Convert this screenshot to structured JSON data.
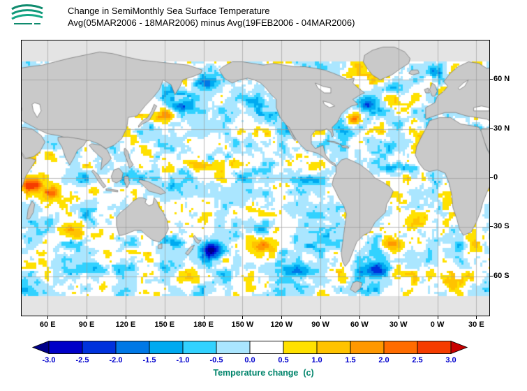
{
  "header": {
    "title_line1": "Change in SemiMonthly Sea Surface Temperature",
    "title_line2": "Avg(05MAR2006 - 18MAR2006) minus Avg(19FEB2006 - 04MAR2006)",
    "logo": "ocean-waves-logo"
  },
  "map": {
    "lat_labels": [
      "60 N",
      "30 N",
      "0",
      "30 S",
      "60 S"
    ],
    "lon_labels": [
      "60 E",
      "90 E",
      "120 E",
      "150 E",
      "180 E",
      "150 W",
      "120 W",
      "90 W",
      "60 W",
      "30 W",
      "0 W",
      "30 E"
    ],
    "land_color": "#c9c9c9",
    "coast_color": "#6f6f6f",
    "ocean_color": "#ffffff",
    "nodata_color": "#e4e4e4",
    "grid_color": "#999999"
  },
  "colorbar": {
    "ticks": [
      "-3.0",
      "-2.5",
      "-2.0",
      "-1.5",
      "-1.0",
      "-0.5",
      "0.0",
      "0.5",
      "1.0",
      "1.5",
      "2.0",
      "2.5",
      "3.0"
    ],
    "caption": "Temperature change  (c)",
    "tick_color": "#0000cd",
    "caption_color": "#00846b",
    "below_color": "#000089",
    "above_color": "#c80000",
    "segment_colors": [
      "#0000c8",
      "#0032dc",
      "#0078e6",
      "#00aaf0",
      "#32d2ff",
      "#aae6ff",
      "#ffffff",
      "#ffe100",
      "#ffc300",
      "#ff9800",
      "#ff6c00",
      "#f53c00"
    ]
  },
  "chart_data": {
    "type": "heatmap",
    "title": "Change in SemiMonthly Sea Surface Temperature",
    "subtitle": "Avg(05MAR2006 - 18MAR2006) minus Avg(19FEB2006 - 04MAR2006)",
    "units": "c",
    "legend_label": "Temperature change  (c)",
    "x_ticks": [
      "60 E",
      "90 E",
      "120 E",
      "150 E",
      "180 E",
      "150 W",
      "120 W",
      "90 W",
      "60 W",
      "30 W",
      "0 W",
      "30 E"
    ],
    "y_ticks": [
      "60 N",
      "30 N",
      "0",
      "30 S",
      "60 S"
    ],
    "lon_range_deg_east": [
      40,
      400
    ],
    "lat_range": [
      -84,
      84
    ],
    "grid_spacing_deg": 30,
    "levels": [
      -3,
      -2.5,
      -2,
      -1.5,
      -1,
      -0.5,
      0,
      0.5,
      1,
      1.5,
      2,
      2.5,
      3
    ],
    "anomaly_regions": [
      {
        "name": "NW Indian Ocean near Somali coast",
        "lon": 47,
        "lat": -4,
        "dlon": 6,
        "dlat": 4,
        "value": 2.8
      },
      {
        "name": "central tropical Indian Ocean",
        "lon": 62,
        "lat": -10,
        "dlon": 9,
        "dlat": 5,
        "value": 1.5
      },
      {
        "name": "Arabian Sea",
        "lon": 64,
        "lat": 14,
        "dlon": 7,
        "dlat": 4,
        "value": 0.9
      },
      {
        "name": "southern Indian Ocean 30S-40S",
        "lon": 85,
        "lat": -33,
        "dlon": 16,
        "dlat": 5,
        "value": 1.5
      },
      {
        "name": "Indonesian seas",
        "lon": 116,
        "lat": -7,
        "dlon": 9,
        "dlat": 4,
        "value": 0.9
      },
      {
        "name": "East China Sea",
        "lon": 126,
        "lat": 26,
        "dlon": 5,
        "dlat": 3,
        "value": 0.8
      },
      {
        "name": "Kuroshio region",
        "lon": 152,
        "lat": 37,
        "dlon": 8,
        "dlat": 4,
        "value": 1.6
      },
      {
        "name": "NW Pacific subarctic",
        "lon": 168,
        "lat": 44,
        "dlon": 9,
        "dlat": 4,
        "value": -1.2
      },
      {
        "name": "Bering Sea",
        "lon": 183,
        "lat": 57,
        "dlon": 9,
        "dlat": 4,
        "value": -1.1
      },
      {
        "name": "Gulf of Alaska",
        "lon": 216,
        "lat": 48,
        "dlon": 12,
        "dlat": 5,
        "value": -1.2
      },
      {
        "name": "north equatorial Pacific band",
        "lon": 178,
        "lat": 8,
        "dlon": 32,
        "dlat": 4,
        "value": 1.3
      },
      {
        "name": "eastern equatorial Pacific",
        "lon": 262,
        "lat": -1,
        "dlon": 14,
        "dlat": 3,
        "value": -1.7
      },
      {
        "name": "east of New Zealand",
        "lon": 186,
        "lat": -44,
        "dlon": 8,
        "dlat": 5,
        "value": -3.4
      },
      {
        "name": "Tasman Sea",
        "lon": 159,
        "lat": -38,
        "dlon": 6,
        "dlat": 4,
        "value": -0.9
      },
      {
        "name": "south central Pacific",
        "lon": 226,
        "lat": -42,
        "dlon": 14,
        "dlat": 6,
        "value": 1.3
      },
      {
        "name": "far southern Pacific",
        "lon": 252,
        "lat": -56,
        "dlon": 16,
        "dlat": 4,
        "value": -1.4
      },
      {
        "name": "SW Atlantic and Drake Passage",
        "lon": 312,
        "lat": -55,
        "dlon": 14,
        "dlat": 4,
        "value": -1.5
      },
      {
        "name": "Brazil-Malvinas confluence",
        "lon": 325,
        "lat": -40,
        "dlon": 8,
        "dlat": 5,
        "value": 1.9
      },
      {
        "name": "subtropical South Atlantic",
        "lon": 344,
        "lat": -26,
        "dlon": 9,
        "dlat": 5,
        "value": 1.0
      },
      {
        "name": "tropical North Atlantic band",
        "lon": 330,
        "lat": 6,
        "dlon": 16,
        "dlat": 3,
        "value": -1.3
      },
      {
        "name": "Gulf Stream off US east coast",
        "lon": 296,
        "lat": 36,
        "dlon": 4,
        "dlat": 3,
        "value": 2.3
      },
      {
        "name": "NW Atlantic",
        "lon": 306,
        "lat": 45,
        "dlon": 9,
        "dlat": 5,
        "value": -2.0
      },
      {
        "name": "subpolar North Atlantic",
        "lon": 325,
        "lat": 55,
        "dlon": 9,
        "dlat": 4,
        "value": -1.3
      },
      {
        "name": "Norwegian Sea",
        "lon": 357,
        "lat": 65,
        "dlon": 5,
        "dlat": 4,
        "value": -1.8
      },
      {
        "name": "southern Indian Ocean 55S",
        "lon": 100,
        "lat": -55,
        "dlon": 25,
        "dlat": 4,
        "value": -1.1
      }
    ]
  }
}
